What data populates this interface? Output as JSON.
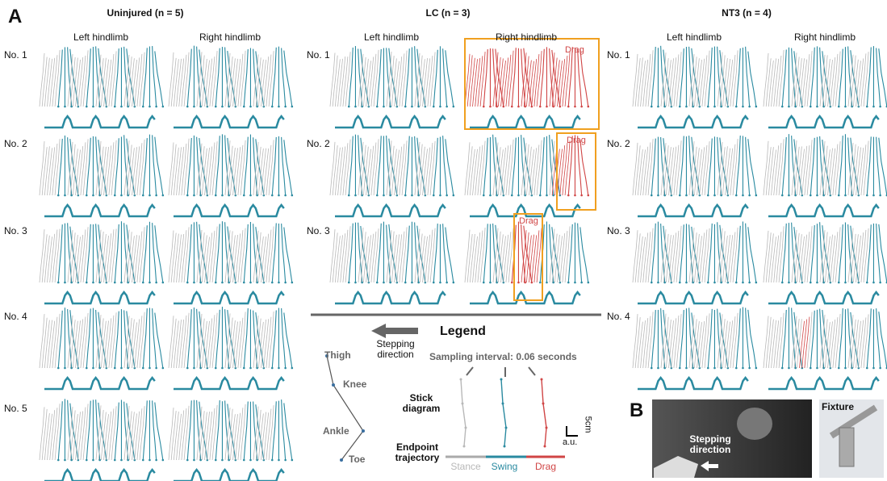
{
  "panel_labels": [
    "A",
    "B"
  ],
  "groups": [
    {
      "title": "Uninjured (n = 5)",
      "columns": [
        "Left hindlimb",
        "Right hindlimb"
      ],
      "rows": [
        "No. 1",
        "No. 2",
        "No. 3",
        "No. 4",
        "No. 5"
      ]
    },
    {
      "title": "LC (n = 3)",
      "columns": [
        "Left hindlimb",
        "Right hindlimb"
      ],
      "rows": [
        "No. 1",
        "No. 2",
        "No. 3"
      ]
    },
    {
      "title": "NT3 (n = 4)",
      "columns": [
        "Left hindlimb",
        "Right hindlimb"
      ],
      "rows": [
        "No. 1",
        "No. 2",
        "No. 3",
        "No. 4"
      ]
    }
  ],
  "drag_labels": [
    "Drag",
    "Drag",
    "Drag"
  ],
  "legend": {
    "title": "Legend",
    "stepping_direction": "Stepping direction",
    "sampling_interval": "Sampling interval: 0.06 seconds",
    "joints": [
      "Thigh",
      "Knee",
      "Ankle",
      "Toe"
    ],
    "stick_diagram": "Stick diagram",
    "endpoint_trajectory": "Endpoint trajectory",
    "scale_y": "5cm",
    "scale_x": "a.u.",
    "phases": [
      "Stance",
      "Swing",
      "Drag"
    ]
  },
  "photo": {
    "stepping_direction": "Stepping direction",
    "fixture": "Fixture"
  }
}
